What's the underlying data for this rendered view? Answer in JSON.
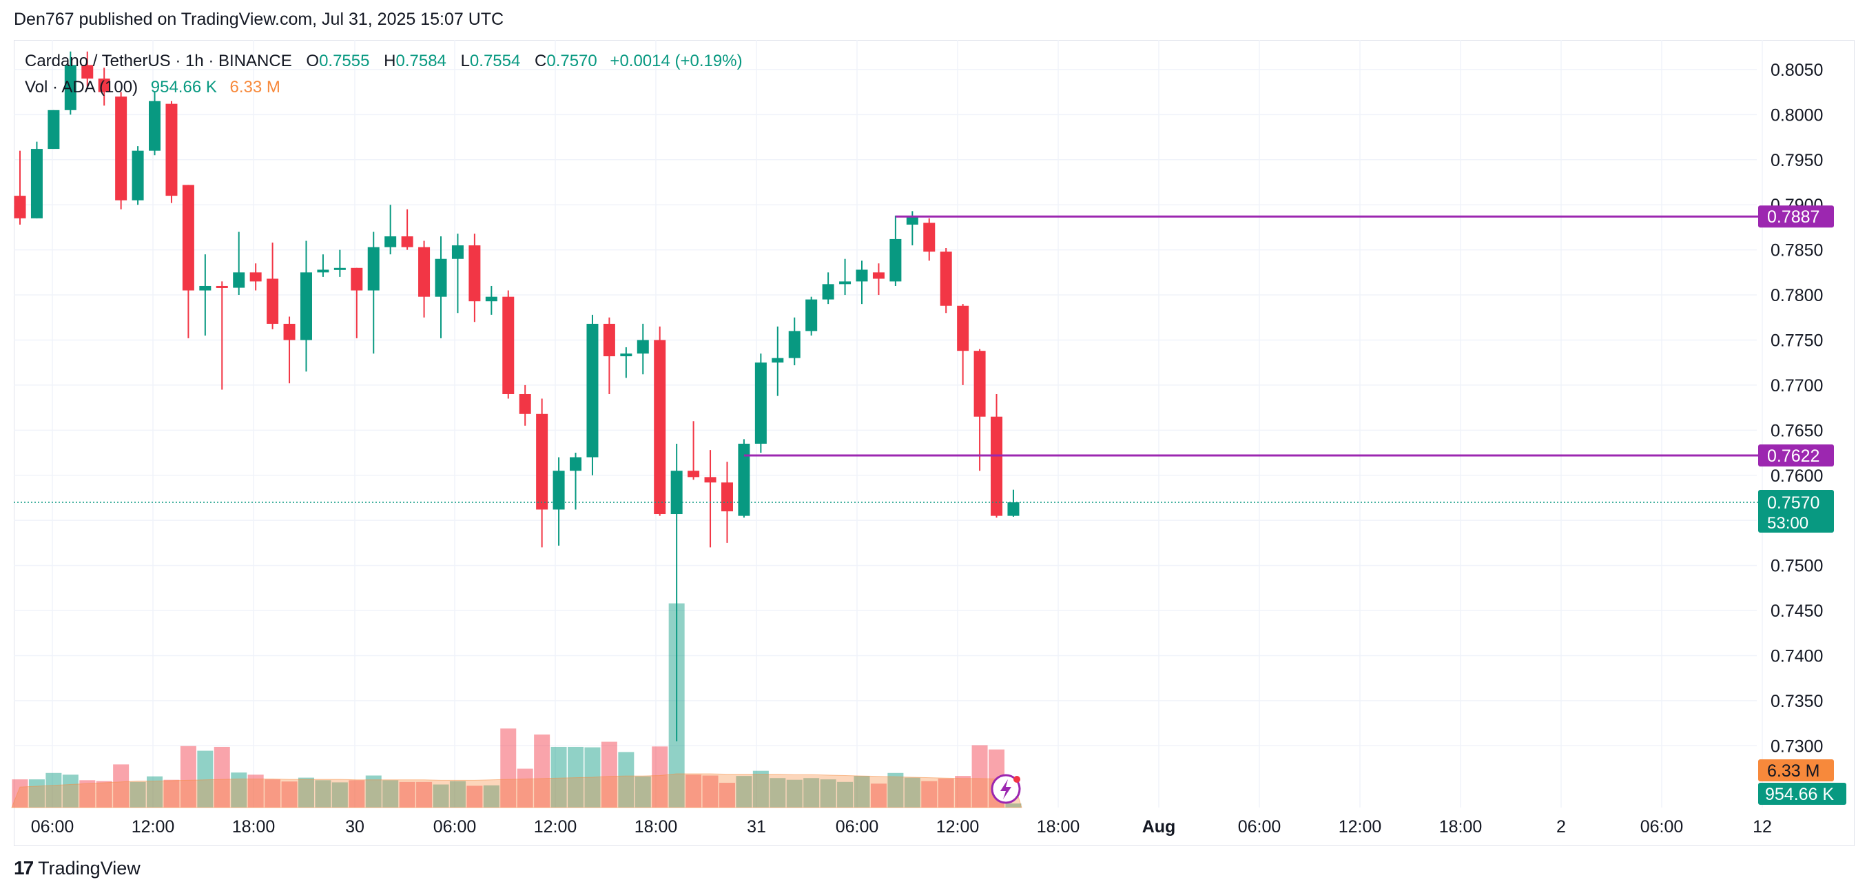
{
  "header": {
    "published": "Den767 published on TradingView.com, Jul 31, 2025 15:07 UTC"
  },
  "legend": {
    "symbol": "Cardano / TetherUS · 1h · BINANCE",
    "o_label": "O",
    "o_value": "0.7555",
    "h_label": "H",
    "h_value": "0.7584",
    "l_label": "L",
    "l_value": "0.7554",
    "c_label": "C",
    "c_value": "0.7570",
    "change": "+0.0014 (+0.19%)",
    "vol_label": "Vol · ADA (100)",
    "vol_value": "954.66 K",
    "vol_ma_value": "6.33 M"
  },
  "footer": {
    "logo_mark": "17",
    "logo_text": "TradingView"
  },
  "colors": {
    "up": "#089981",
    "down": "#f23645",
    "line": "#9c27b0",
    "grid": "#f0f3fa",
    "vol_ma": "#f7893b"
  },
  "chart_data": {
    "type": "candlestick",
    "title": "Cardano / TetherUS · 1h · BINANCE",
    "y_axis": {
      "ticks": [
        "0.8050",
        "0.8000",
        "0.7950",
        "0.7900",
        "0.7850",
        "0.7800",
        "0.7750",
        "0.7700",
        "0.7650",
        "0.7600",
        "0.7550",
        "0.7500",
        "0.7450",
        "0.7400",
        "0.7350",
        "0.7300"
      ],
      "range": [
        0.7288,
        0.8066
      ]
    },
    "x_axis": {
      "ticks": [
        "06:00",
        "12:00",
        "18:00",
        "30",
        "06:00",
        "12:00",
        "18:00",
        "31",
        "06:00",
        "12:00",
        "18:00",
        "Aug",
        "06:00",
        "12:00",
        "18:00",
        "2",
        "06:00",
        "12"
      ]
    },
    "grid": true,
    "candles": [
      {
        "o": 0.791,
        "h": 0.796,
        "l": 0.7878,
        "c": 0.7885
      },
      {
        "o": 0.7885,
        "h": 0.797,
        "l": 0.7885,
        "c": 0.7962
      },
      {
        "o": 0.7962,
        "h": 0.8005,
        "l": 0.7962,
        "c": 0.8005
      },
      {
        "o": 0.8005,
        "h": 0.807,
        "l": 0.8,
        "c": 0.8055
      },
      {
        "o": 0.8055,
        "h": 0.807,
        "l": 0.803,
        "c": 0.804
      },
      {
        "o": 0.804,
        "h": 0.8052,
        "l": 0.801,
        "c": 0.8025
      },
      {
        "o": 0.802,
        "h": 0.8025,
        "l": 0.7895,
        "c": 0.7905
      },
      {
        "o": 0.7905,
        "h": 0.7965,
        "l": 0.79,
        "c": 0.796
      },
      {
        "o": 0.796,
        "h": 0.8025,
        "l": 0.7955,
        "c": 0.8015
      },
      {
        "o": 0.8012,
        "h": 0.8015,
        "l": 0.7902,
        "c": 0.791
      },
      {
        "o": 0.7922,
        "h": 0.7922,
        "l": 0.7752,
        "c": 0.7805
      },
      {
        "o": 0.7805,
        "h": 0.7845,
        "l": 0.7755,
        "c": 0.781
      },
      {
        "o": 0.781,
        "h": 0.7815,
        "l": 0.7695,
        "c": 0.7808
      },
      {
        "o": 0.7808,
        "h": 0.787,
        "l": 0.78,
        "c": 0.7825
      },
      {
        "o": 0.7825,
        "h": 0.7835,
        "l": 0.7805,
        "c": 0.7815
      },
      {
        "o": 0.7818,
        "h": 0.7858,
        "l": 0.7762,
        "c": 0.7768
      },
      {
        "o": 0.7768,
        "h": 0.7776,
        "l": 0.7702,
        "c": 0.775
      },
      {
        "o": 0.775,
        "h": 0.786,
        "l": 0.7715,
        "c": 0.7825
      },
      {
        "o": 0.7825,
        "h": 0.7845,
        "l": 0.782,
        "c": 0.7828
      },
      {
        "o": 0.7828,
        "h": 0.785,
        "l": 0.782,
        "c": 0.783
      },
      {
        "o": 0.783,
        "h": 0.783,
        "l": 0.7752,
        "c": 0.7805
      },
      {
        "o": 0.7805,
        "h": 0.787,
        "l": 0.7735,
        "c": 0.7853
      },
      {
        "o": 0.7853,
        "h": 0.79,
        "l": 0.7845,
        "c": 0.7865
      },
      {
        "o": 0.7865,
        "h": 0.7895,
        "l": 0.785,
        "c": 0.7853
      },
      {
        "o": 0.7853,
        "h": 0.786,
        "l": 0.7775,
        "c": 0.7798
      },
      {
        "o": 0.7798,
        "h": 0.7865,
        "l": 0.7752,
        "c": 0.784
      },
      {
        "o": 0.784,
        "h": 0.7868,
        "l": 0.778,
        "c": 0.7855
      },
      {
        "o": 0.7855,
        "h": 0.7868,
        "l": 0.777,
        "c": 0.7793
      },
      {
        "o": 0.7793,
        "h": 0.781,
        "l": 0.7778,
        "c": 0.7798
      },
      {
        "o": 0.7798,
        "h": 0.7805,
        "l": 0.7685,
        "c": 0.769
      },
      {
        "o": 0.769,
        "h": 0.77,
        "l": 0.7655,
        "c": 0.7668
      },
      {
        "o": 0.7668,
        "h": 0.7685,
        "l": 0.752,
        "c": 0.7562
      },
      {
        "o": 0.7562,
        "h": 0.762,
        "l": 0.7522,
        "c": 0.7605
      },
      {
        "o": 0.7605,
        "h": 0.7625,
        "l": 0.7562,
        "c": 0.762
      },
      {
        "o": 0.762,
        "h": 0.7778,
        "l": 0.76,
        "c": 0.7768
      },
      {
        "o": 0.7768,
        "h": 0.7775,
        "l": 0.769,
        "c": 0.7732
      },
      {
        "o": 0.7732,
        "h": 0.7742,
        "l": 0.7708,
        "c": 0.7735
      },
      {
        "o": 0.7735,
        "h": 0.7768,
        "l": 0.7712,
        "c": 0.775
      },
      {
        "o": 0.775,
        "h": 0.7765,
        "l": 0.7555,
        "c": 0.7557
      },
      {
        "o": 0.7557,
        "h": 0.7635,
        "l": 0.7305,
        "c": 0.7605
      },
      {
        "o": 0.7605,
        "h": 0.766,
        "l": 0.7595,
        "c": 0.7598
      },
      {
        "o": 0.7598,
        "h": 0.7628,
        "l": 0.752,
        "c": 0.7592
      },
      {
        "o": 0.7592,
        "h": 0.7615,
        "l": 0.7525,
        "c": 0.756
      },
      {
        "o": 0.7555,
        "h": 0.764,
        "l": 0.7553,
        "c": 0.7635
      },
      {
        "o": 0.7635,
        "h": 0.7735,
        "l": 0.7625,
        "c": 0.7725
      },
      {
        "o": 0.7725,
        "h": 0.7765,
        "l": 0.7688,
        "c": 0.773
      },
      {
        "o": 0.773,
        "h": 0.7775,
        "l": 0.7722,
        "c": 0.776
      },
      {
        "o": 0.776,
        "h": 0.7798,
        "l": 0.7755,
        "c": 0.7795
      },
      {
        "o": 0.7795,
        "h": 0.7825,
        "l": 0.779,
        "c": 0.7812
      },
      {
        "o": 0.7812,
        "h": 0.784,
        "l": 0.78,
        "c": 0.7815
      },
      {
        "o": 0.7815,
        "h": 0.7838,
        "l": 0.779,
        "c": 0.7828
      },
      {
        "o": 0.7825,
        "h": 0.7835,
        "l": 0.78,
        "c": 0.7818
      },
      {
        "o": 0.7815,
        "h": 0.7888,
        "l": 0.781,
        "c": 0.7862
      },
      {
        "o": 0.7878,
        "h": 0.7893,
        "l": 0.7855,
        "c": 0.7886
      },
      {
        "o": 0.788,
        "h": 0.7885,
        "l": 0.7838,
        "c": 0.7848
      },
      {
        "o": 0.7848,
        "h": 0.7852,
        "l": 0.778,
        "c": 0.7788
      },
      {
        "o": 0.7788,
        "h": 0.779,
        "l": 0.77,
        "c": 0.7738
      },
      {
        "o": 0.7738,
        "h": 0.774,
        "l": 0.7605,
        "c": 0.7665
      },
      {
        "o": 0.7665,
        "h": 0.769,
        "l": 0.7553,
        "c": 0.7555
      },
      {
        "o": 0.7555,
        "h": 0.7584,
        "l": 0.7554,
        "c": 0.757
      }
    ],
    "volume_series": {
      "name": "Vol · ADA (100)",
      "values": [
        6.6,
        6.6,
        8.1,
        7.7,
        6.4,
        6.2,
        10.1,
        6.0,
        7.3,
        6.5,
        14.4,
        13.3,
        14.2,
        8.2,
        7.7,
        6.6,
        6.1,
        7.0,
        6.4,
        5.9,
        6.4,
        7.5,
        6.4,
        6.0,
        6.0,
        5.4,
        6.2,
        5.1,
        5.2,
        18.5,
        9.1,
        17.1,
        14.2,
        14.2,
        14.1,
        15.4,
        13.0,
        7.3,
        14.3,
        47.8,
        7.7,
        7.5,
        5.8,
        7.4,
        8.6,
        6.9,
        6.5,
        6.9,
        6.6,
        6.0,
        7.4,
        5.6,
        8.1,
        7.0,
        6.2,
        6.8,
        7.4,
        14.6,
        13.6,
        0.95
      ],
      "unit": "M",
      "ma_values": [
        4.8,
        5.0,
        5.2,
        5.4,
        5.6,
        5.8,
        6.0,
        6.2,
        6.2,
        6.3,
        6.4,
        6.5,
        6.6,
        6.7,
        6.7,
        6.7,
        6.6,
        6.6,
        6.6,
        6.6,
        6.5,
        6.5,
        6.5,
        6.5,
        6.5,
        6.4,
        6.4,
        6.4,
        6.5,
        6.6,
        6.7,
        6.8,
        6.9,
        7.0,
        7.1,
        7.3,
        7.4,
        7.4,
        7.5,
        7.9,
        7.9,
        7.9,
        7.8,
        7.8,
        7.8,
        7.8,
        7.7,
        7.7,
        7.6,
        7.5,
        7.4,
        7.3,
        7.2,
        7.1,
        7.0,
        6.9,
        6.8,
        6.8,
        6.7,
        6.33
      ]
    },
    "horizontal_lines": [
      {
        "value": 0.7887,
        "label": "0.7887",
        "start_index": 52
      },
      {
        "value": 0.7622,
        "label": "0.7622",
        "start_index": 43
      }
    ],
    "last_price": {
      "label": "0.7570",
      "countdown": "53:00",
      "value": 0.757
    },
    "volume_labels": {
      "ma": "6.33 M",
      "vol": "954.66 K"
    }
  }
}
